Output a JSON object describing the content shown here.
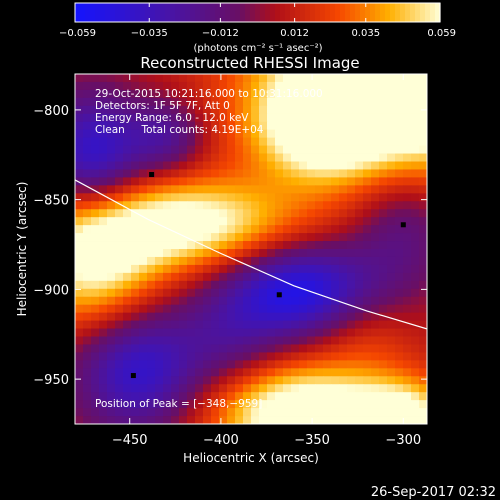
{
  "chart_data": {
    "type": "heatmap",
    "title": "Reconstructed RHESSI Image",
    "xlabel": "Heliocentric X (arcsec)",
    "ylabel": "Heliocentric Y (arcsec)",
    "xlim": [
      -480,
      -287
    ],
    "ylim": [
      -975,
      -780
    ],
    "xticks": [
      -450,
      -400,
      -350,
      -300
    ],
    "yticks": [
      -800,
      -850,
      -900,
      -950
    ],
    "colorbar": {
      "min": -0.059,
      "max": 0.059,
      "ticks": [
        -0.059,
        -0.035,
        -0.012,
        0.012,
        0.035,
        0.059
      ],
      "tick_labels": [
        "−0.059",
        "−0.035",
        "−0.012",
        "0.012",
        "0.035",
        "0.059"
      ],
      "units_label": "(photons cm⁻² s⁻¹ asec⁻²)"
    },
    "annotations": [
      "29-Oct-2015 10:21:16.000 to 10:31:16.000",
      "Detectors: 1F 5F 7F, Att 0",
      "Energy Range: 6.0 - 12.0 keV",
      "Clean     Total counts: 4.19E+04",
      "Position of Peak = [−348,−959]"
    ],
    "limb_curve": [
      [
        -480,
        -839
      ],
      [
        -440,
        -861
      ],
      [
        -400,
        -880
      ],
      [
        -360,
        -898
      ],
      [
        -320,
        -912
      ],
      [
        -287,
        -922
      ]
    ],
    "sources": [
      {
        "x": -290,
        "y": -782,
        "amp": 0.1,
        "sx": 55,
        "sy": 35
      },
      {
        "x": -345,
        "y": -810,
        "amp": 0.05,
        "sx": 25,
        "sy": 20
      },
      {
        "x": -420,
        "y": -864,
        "amp": 0.06,
        "sx": 45,
        "sy": 18
      },
      {
        "x": -470,
        "y": -888,
        "amp": 0.05,
        "sx": 25,
        "sy": 25
      },
      {
        "x": -322,
        "y": -925,
        "amp": 0.015,
        "sx": 20,
        "sy": 15
      },
      {
        "x": -355,
        "y": -970,
        "amp": 0.07,
        "sx": 35,
        "sy": 20
      },
      {
        "x": -300,
        "y": -972,
        "amp": 0.05,
        "sx": 20,
        "sy": 15
      },
      {
        "x": -470,
        "y": -825,
        "amp": -0.05,
        "sx": 20,
        "sy": 25
      },
      {
        "x": -430,
        "y": -815,
        "amp": -0.03,
        "sx": 15,
        "sy": 15
      },
      {
        "x": -358,
        "y": -900,
        "amp": -0.06,
        "sx": 30,
        "sy": 20
      },
      {
        "x": -445,
        "y": -945,
        "amp": -0.05,
        "sx": 25,
        "sy": 25
      },
      {
        "x": -395,
        "y": -930,
        "amp": -0.02,
        "sx": 20,
        "sy": 20
      },
      {
        "x": -300,
        "y": -865,
        "amp": -0.025,
        "sx": 20,
        "sy": 25
      }
    ],
    "minima_markers": [
      [
        -368,
        -903
      ],
      [
        -448,
        -948
      ],
      [
        -438,
        -836
      ],
      [
        -300,
        -864
      ]
    ],
    "grid": false,
    "legend": "none"
  },
  "footer": {
    "timestamp": "26-Sep-2017 02:32"
  }
}
